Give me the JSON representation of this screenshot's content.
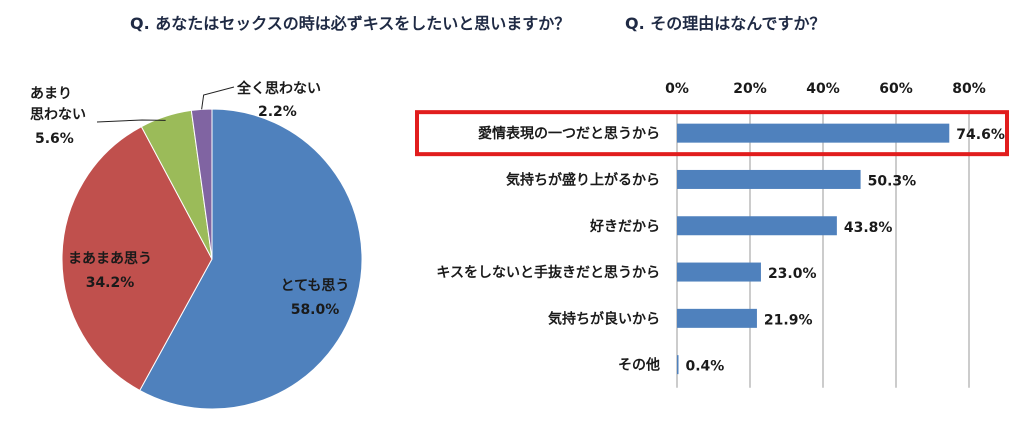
{
  "titles": {
    "left": "Q. あなたはセックスの時は必ずキスをしたいと思いますか？",
    "right": "Q. その理由はなんですか？"
  },
  "colors": {
    "pie": [
      "#4f81bd",
      "#c0504d",
      "#9bbb59",
      "#8064a2"
    ],
    "bar": "#4f81bd",
    "highlight": "#e11d1d"
  },
  "chart_data": [
    {
      "type": "pie",
      "slices": [
        {
          "label": "とても思う",
          "value": 58.0,
          "value_label": "58.0%"
        },
        {
          "label": "まあまあ思う",
          "value": 34.2,
          "value_label": "34.2%"
        },
        {
          "label": "あまり思わない",
          "value": 5.6,
          "value_label": "5.6%"
        },
        {
          "label": "全く思わない",
          "value": 2.2,
          "value_label": "2.2%"
        }
      ]
    },
    {
      "type": "bar",
      "orientation": "horizontal",
      "categories": [
        "愛情表現の一つだと思うから",
        "気持ちが盛り上がるから",
        "好きだから",
        "キスをしないと手抜きだと思うから",
        "気持ちが良いから",
        "その他"
      ],
      "values": [
        74.6,
        50.3,
        43.8,
        23.0,
        21.9,
        0.4
      ],
      "value_labels": [
        "74.6%",
        "50.3%",
        "43.8%",
        "23.0%",
        "21.9%",
        "0.4%"
      ],
      "xlim": [
        0,
        80
      ],
      "xticks": [
        "0%",
        "20%",
        "40%",
        "60%",
        "80%"
      ],
      "highlighted_category": "愛情表現の一つだと思うから",
      "grid": true
    }
  ]
}
